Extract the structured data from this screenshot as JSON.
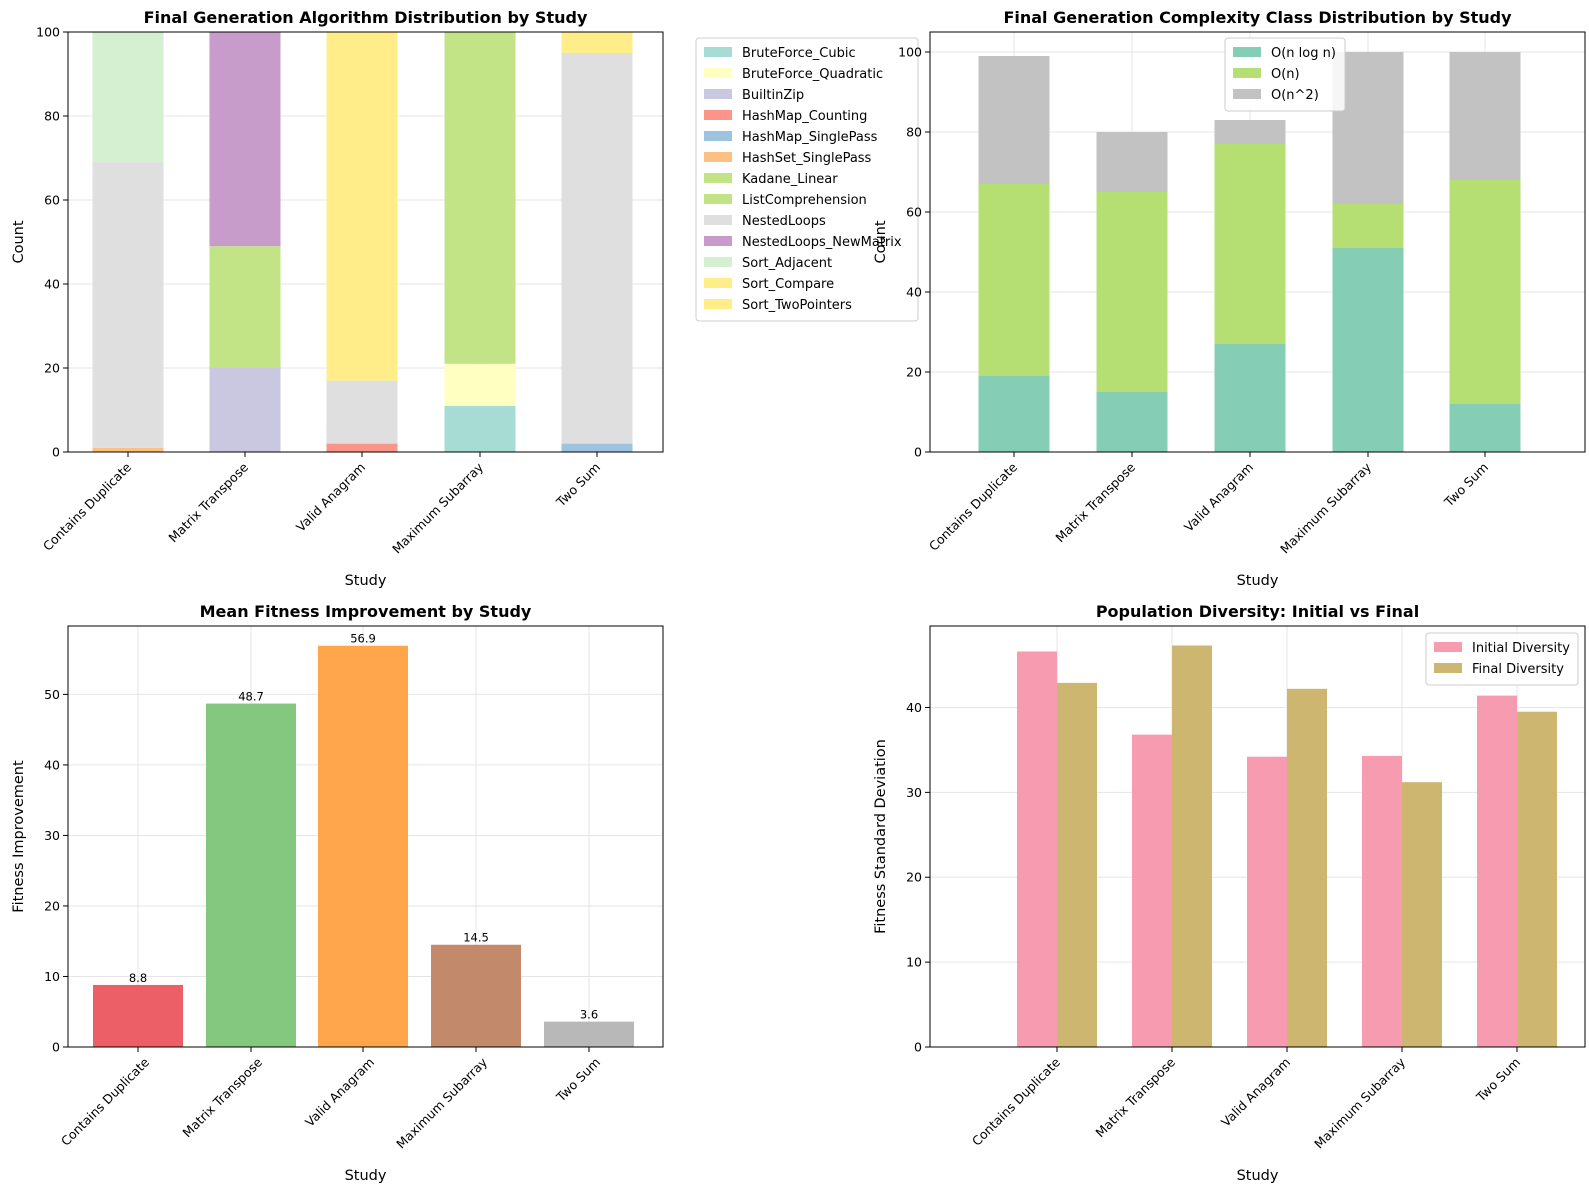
{
  "chart_data": [
    {
      "type": "bar",
      "stacked": true,
      "title": "Final Generation Algorithm Distribution by Study",
      "xlabel": "Study",
      "ylabel": "Count",
      "ylim": [
        0,
        100
      ],
      "yticks": [
        "0",
        "20",
        "40",
        "60",
        "80",
        "100"
      ],
      "categories": [
        "Contains Duplicate",
        "Matrix Transpose",
        "Valid Anagram",
        "Maximum Subarray",
        "Two Sum"
      ],
      "legend_position": "outside-right",
      "series": [
        {
          "name": "BruteForce_Cubic",
          "color": "#a6dcd3",
          "values": [
            0,
            0,
            0,
            11,
            0
          ]
        },
        {
          "name": "BruteForce_Quadratic",
          "color": "#ffffc2",
          "values": [
            0,
            0,
            0,
            10,
            0
          ]
        },
        {
          "name": "BuiltinZip",
          "color": "#cac7e0",
          "values": [
            0,
            20,
            0,
            0,
            0
          ]
        },
        {
          "name": "HashMap_Counting",
          "color": "#fb9589",
          "values": [
            0,
            0,
            2,
            0,
            0
          ]
        },
        {
          "name": "HashMap_SinglePass",
          "color": "#9dc3de",
          "values": [
            0,
            0,
            0,
            0,
            2
          ]
        },
        {
          "name": "HashSet_SinglePass",
          "color": "#fdc083",
          "values": [
            1,
            0,
            0,
            0,
            0
          ]
        },
        {
          "name": "Kadane_Linear",
          "color": "#c3e387",
          "values": [
            0,
            0,
            0,
            0,
            0
          ]
        },
        {
          "name": "ListComprehension",
          "color": "#c3e387",
          "values": [
            0,
            29,
            0,
            79,
            0
          ]
        },
        {
          "name": "NestedLoops",
          "color": "#dfdfdf",
          "values": [
            68,
            0,
            15,
            0,
            93
          ]
        },
        {
          "name": "NestedLoops_NewMatrix",
          "color": "#c79bca",
          "values": [
            0,
            51,
            0,
            0,
            0
          ]
        },
        {
          "name": "Sort_Adjacent",
          "color": "#d5efd1",
          "values": [
            31,
            0,
            0,
            0,
            0
          ]
        },
        {
          "name": "Sort_Compare",
          "color": "#ffed8a",
          "values": [
            0,
            0,
            83,
            0,
            5
          ]
        },
        {
          "name": "Sort_TwoPointers",
          "color": "#ffed8a",
          "values": [
            0,
            0,
            0,
            0,
            0
          ]
        }
      ]
    },
    {
      "type": "bar",
      "stacked": true,
      "title": "Final Generation Complexity Class Distribution by Study",
      "xlabel": "Study",
      "ylabel": "Count",
      "ylim": [
        0,
        105
      ],
      "yticks": [
        "0",
        "20",
        "40",
        "60",
        "80",
        "100"
      ],
      "categories": [
        "Contains Duplicate",
        "Matrix Transpose",
        "Valid Anagram",
        "Maximum Subarray",
        "Two Sum"
      ],
      "legend_position": "top-center",
      "series": [
        {
          "name": "O(n log n)",
          "color": "#85cdb4",
          "values": [
            19,
            15,
            27,
            51,
            12
          ]
        },
        {
          "name": "O(n)",
          "color": "#b5df73",
          "values": [
            48,
            50,
            50,
            11,
            56
          ]
        },
        {
          "name": "O(n^2)",
          "color": "#c2c2c2",
          "values": [
            32,
            15,
            6,
            38,
            32
          ]
        }
      ]
    },
    {
      "type": "bar",
      "title": "Mean Fitness Improvement by Study",
      "xlabel": "Study",
      "ylabel": "Fitness Improvement",
      "ylim": [
        0,
        59.7
      ],
      "yticks": [
        "0",
        "10",
        "20",
        "30",
        "40",
        "50"
      ],
      "categories": [
        "Contains Duplicate",
        "Matrix Transpose",
        "Valid Anagram",
        "Maximum Subarray",
        "Two Sum"
      ],
      "values": [
        8.8,
        48.7,
        56.9,
        14.5,
        3.6
      ],
      "data_labels": [
        "8.8",
        "48.7",
        "56.9",
        "14.5",
        "3.6"
      ],
      "colors": [
        "#ed5f66",
        "#84c77e",
        "#ffa54c",
        "#c2896a",
        "#b8b8b8"
      ]
    },
    {
      "type": "bar",
      "title": "Population Diversity: Initial vs Final",
      "xlabel": "Study",
      "ylabel": "Fitness Standard Deviation",
      "ylim": [
        0,
        49.6
      ],
      "yticks": [
        "0",
        "10",
        "20",
        "30",
        "40"
      ],
      "categories": [
        "Contains Duplicate",
        "Matrix Transpose",
        "Valid Anagram",
        "Maximum Subarray",
        "Two Sum"
      ],
      "legend_position": "top-right",
      "series": [
        {
          "name": "Initial Diversity",
          "color": "#f79bb0",
          "values": [
            46.6,
            36.8,
            34.2,
            34.3,
            41.4
          ]
        },
        {
          "name": "Final Diversity",
          "color": "#cdb670",
          "values": [
            42.9,
            47.3,
            42.2,
            31.2,
            39.5
          ]
        }
      ]
    }
  ]
}
